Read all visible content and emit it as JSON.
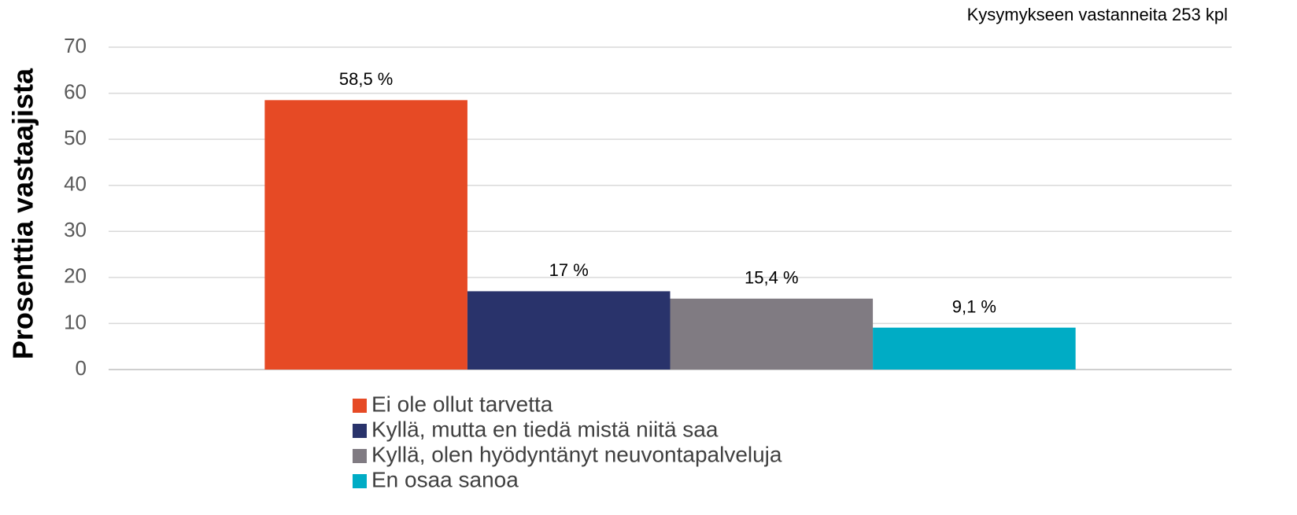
{
  "chart_data": {
    "type": "bar",
    "annotation": "Kysymykseen vastanneita 253 kpl",
    "y_label": "Prosenttia vastaajista",
    "categories": [
      null
    ],
    "series": [
      {
        "name": "Ei ole ollut tarvetta",
        "color": "#e64a25",
        "values": [
          58.5
        ],
        "value_labels": [
          "58,5 %"
        ]
      },
      {
        "name": "Kyllä, mutta en tiedä mistä niitä saa",
        "color": "#29336b",
        "values": [
          17
        ],
        "value_labels": [
          "17 %"
        ]
      },
      {
        "name": "Kyllä, olen hyödyntänyt neuvontapalveluja",
        "color": "#807b82",
        "values": [
          15.4
        ],
        "value_labels": [
          "15,4 %"
        ]
      },
      {
        "name": "En osaa sanoa",
        "color": "#00acc5",
        "values": [
          9.1
        ],
        "value_labels": [
          "9,1 %"
        ]
      }
    ],
    "ylim": [
      0,
      70
    ],
    "yticks": [
      0,
      10,
      20,
      30,
      40,
      50,
      60,
      70
    ],
    "grid": true,
    "legend": "bottom"
  }
}
